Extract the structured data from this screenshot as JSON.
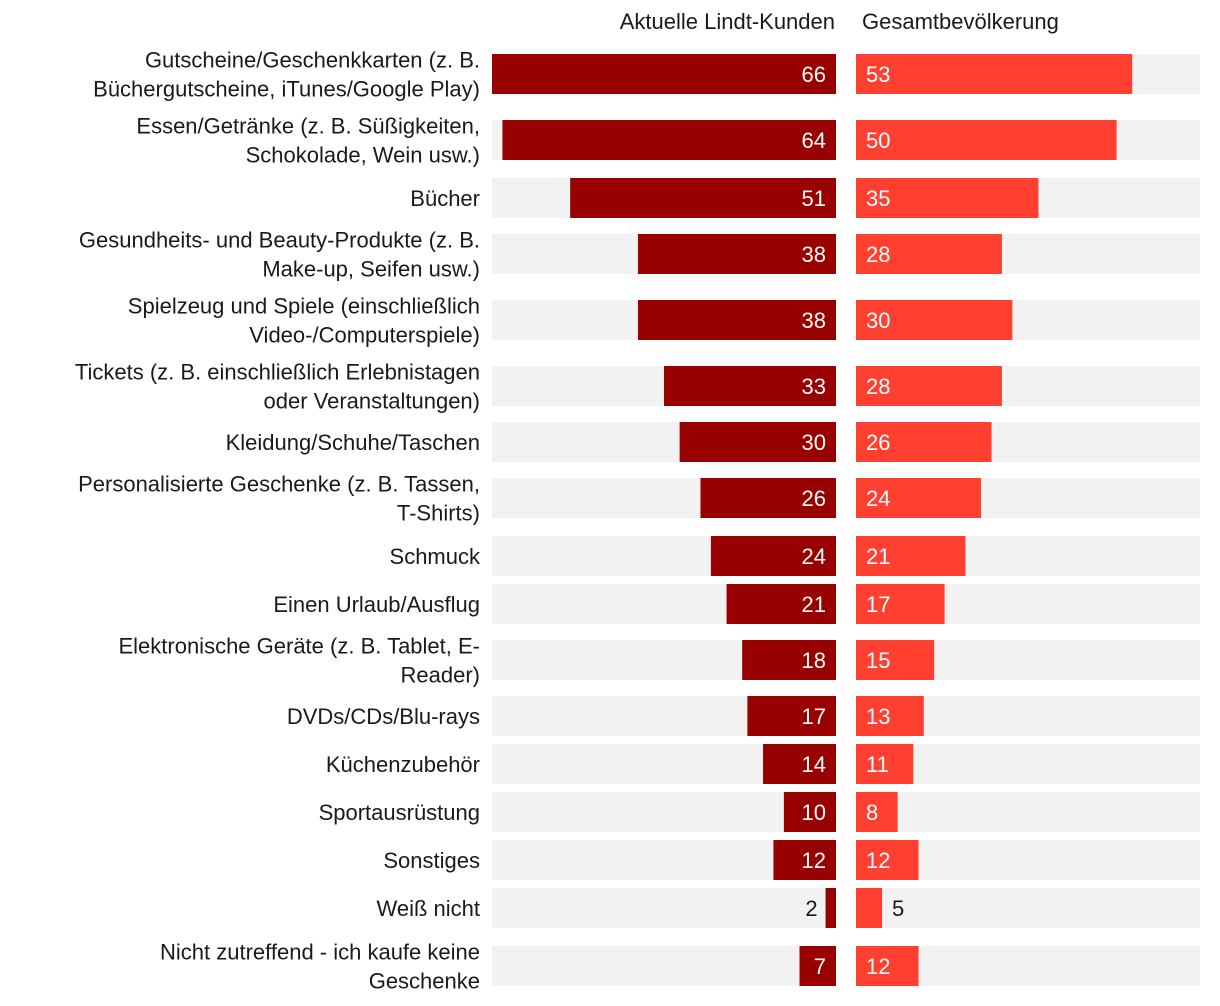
{
  "chart_data": {
    "type": "bar",
    "orientation": "horizontal",
    "layout": "butterfly",
    "title": "",
    "xlabel": "",
    "ylabel": "",
    "xlim": [
      0,
      66
    ],
    "grid": false,
    "colors": {
      "lindt": "#990000",
      "population": "#ff4030",
      "track": "#f2f2f2",
      "label_inside": "#ffffff",
      "label_outside": "#1a1a1a"
    },
    "categories": [
      "Gutscheine/Geschenkkarten (z. B. Büchergutscheine, iTunes/Google Play)",
      "Essen/Getränke (z. B. Süßigkeiten, Schokolade, Wein usw.)",
      "Bücher",
      "Gesundheits- und Beauty-Produkte (z. B. Make-up, Seifen usw.)",
      "Spielzeug und Spiele (einschließlich Video-/Computerspiele)",
      "Tickets (z. B. einschließlich Erlebnistagen oder Veranstaltungen)",
      "Kleidung/Schuhe/Taschen",
      "Personalisierte Geschenke (z. B. Tassen, T-Shirts)",
      "Schmuck",
      "Einen Urlaub/Ausflug",
      "Elektronische Geräte (z. B. Tablet, E-Reader)",
      "DVDs/CDs/Blu-rays",
      "Küchenzubehör",
      "Sportausrüstung",
      "Sonstiges",
      "Weiß nicht",
      "Nicht zutreffend - ich kaufe keine Geschenke"
    ],
    "category_lines": [
      [
        "Gutscheine/Geschenkkarten (z. B.",
        "Büchergutscheine, iTunes/Google Play)"
      ],
      [
        "Essen/Getränke (z. B. Süßigkeiten,",
        "Schokolade, Wein usw.)"
      ],
      [
        "Bücher"
      ],
      [
        "Gesundheits- und Beauty-Produkte (z. B.",
        "Make-up, Seifen usw.)"
      ],
      [
        "Spielzeug und Spiele (einschließlich",
        "Video-/Computerspiele)"
      ],
      [
        "Tickets (z. B. einschließlich Erlebnistagen",
        "oder Veranstaltungen)"
      ],
      [
        "Kleidung/Schuhe/Taschen"
      ],
      [
        "Personalisierte Geschenke (z. B. Tassen,",
        "T-Shirts)"
      ],
      [
        "Schmuck"
      ],
      [
        "Einen Urlaub/Ausflug"
      ],
      [
        "Elektronische Geräte (z. B. Tablet, E-",
        "Reader)"
      ],
      [
        "DVDs/CDs/Blu-rays"
      ],
      [
        "Küchenzubehör"
      ],
      [
        "Sportausrüstung"
      ],
      [
        "Sonstiges"
      ],
      [
        "Weiß nicht"
      ],
      [
        "Nicht zutreffend - ich kaufe keine",
        "Geschenke"
      ]
    ],
    "series": [
      {
        "name": "Aktuelle Lindt-Kunden",
        "values": [
          66,
          64,
          51,
          38,
          38,
          33,
          30,
          26,
          24,
          21,
          18,
          17,
          14,
          10,
          12,
          2,
          7
        ]
      },
      {
        "name": "Gesamtbevölkerung",
        "values": [
          53,
          50,
          35,
          28,
          30,
          28,
          26,
          24,
          21,
          17,
          15,
          13,
          11,
          8,
          12,
          5,
          12
        ]
      }
    ]
  }
}
